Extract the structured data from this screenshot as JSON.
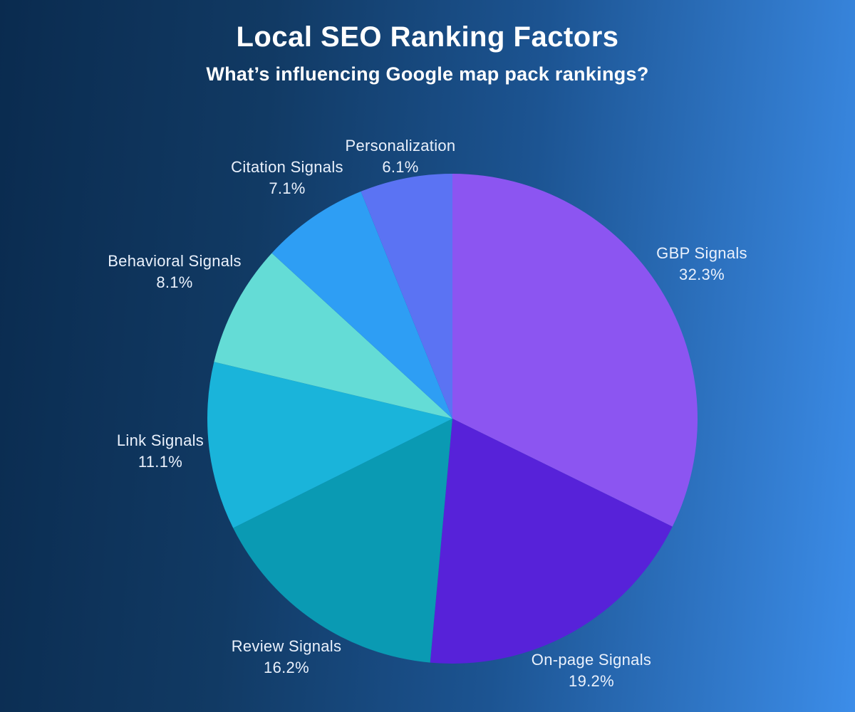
{
  "header": {
    "title": "Local SEO Ranking Factors",
    "subtitle": "What’s influencing Google map pack rankings?"
  },
  "background": {
    "gradient_left": "#0A2B4F",
    "gradient_right": "#3C8DE9"
  },
  "chart_data": {
    "type": "pie",
    "title": "Local SEO Ranking Factors",
    "subtitle": "What’s influencing Google map pack rankings?",
    "start_angle_deg": 0,
    "direction": "clockwise",
    "legend": "none",
    "label_style": "outside",
    "slices": [
      {
        "label": "GBP Signals",
        "value": 32.3,
        "pct_label": "32.3%",
        "color": "#8C55F1"
      },
      {
        "label": "On-page Signals",
        "value": 19.2,
        "pct_label": "19.2%",
        "color": "#5722D9"
      },
      {
        "label": "Review Signals",
        "value": 16.2,
        "pct_label": "16.2%",
        "color": "#0A9AB3"
      },
      {
        "label": "Link Signals",
        "value": 11.1,
        "pct_label": "11.1%",
        "color": "#1AB4DA"
      },
      {
        "label": "Behavioral Signals",
        "value": 8.1,
        "pct_label": "8.1%",
        "color": "#64DCD6"
      },
      {
        "label": "Citation Signals",
        "value": 7.1,
        "pct_label": "7.1%",
        "color": "#2E9EF4"
      },
      {
        "label": "Personalization",
        "value": 6.1,
        "pct_label": "6.1%",
        "color": "#5B73F3"
      }
    ]
  }
}
